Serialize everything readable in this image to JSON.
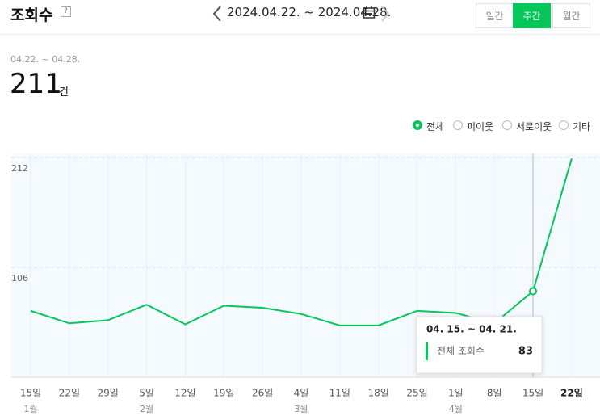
{
  "header": {
    "title": "조회수",
    "help": "?",
    "date_range": "2024.04.22. ~ 2024.04.28."
  },
  "tabs": [
    "일간",
    "주간",
    "월간"
  ],
  "summary": {
    "period": "04.22. ~ 04.28.",
    "total": 211,
    "unit": "건"
  },
  "filters": [
    "전체",
    "피이웃",
    "서로이웃",
    "기타"
  ],
  "chart_data": {
    "type": "line",
    "categories": [
      "15일",
      "22일",
      "29일",
      "5일",
      "12일",
      "19일",
      "26일",
      "4일",
      "11일",
      "18일",
      "25일",
      "1일",
      "8일",
      "15일",
      "22일"
    ],
    "months": [
      "1월",
      null,
      null,
      "2월",
      null,
      null,
      null,
      "3월",
      null,
      null,
      null,
      "4월",
      null,
      null,
      null
    ],
    "values": [
      64,
      52,
      55,
      70,
      51,
      69,
      67,
      61,
      50,
      50,
      64,
      62,
      52,
      83,
      211
    ],
    "color": "#03c75a",
    "ylim": [
      0,
      212
    ],
    "yticks": [
      106,
      212
    ],
    "tooltip": {
      "title": "04. 15. ~ 04. 21.",
      "label": "전체 조회수"
    }
  }
}
